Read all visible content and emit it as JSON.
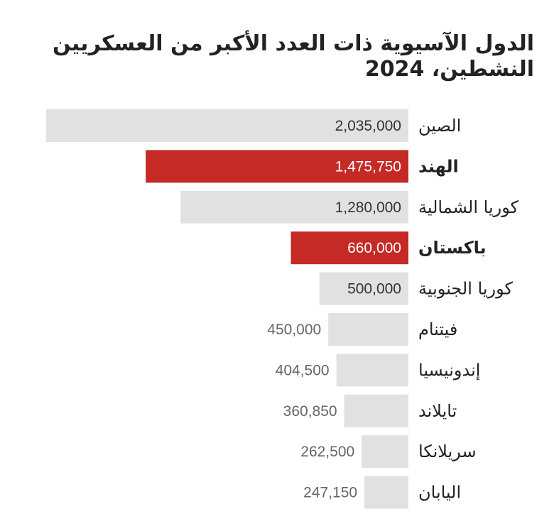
{
  "title": "الدول الآسيوية ذات العدد الأكبر من العسكريين النشطين، 2024",
  "colors": {
    "bar": "#e1e1e1",
    "highlight": "#c52a26",
    "text": "#222222"
  },
  "chart_data": {
    "type": "bar",
    "orientation": "horizontal",
    "title": "الدول الآسيوية ذات العدد الأكبر من العسكريين النشطين، 2024",
    "categories": [
      "الصين",
      "الهند",
      "كوريا الشمالية",
      "باكستان",
      "كوريا الجنوبية",
      "فيتنام",
      "إندونيسيا",
      "تايلاند",
      "سريلانكا",
      "اليابان"
    ],
    "values": [
      2035000,
      1475750,
      1280000,
      660000,
      500000,
      450000,
      404500,
      360850,
      262500,
      247150
    ],
    "value_labels": [
      "2,035,000",
      "1,475,750",
      "1,280,000",
      "660,000",
      "500,000",
      "450,000",
      "404,500",
      "360,850",
      "262,500",
      "247,150"
    ],
    "highlighted": [
      "الهند",
      "باكستان"
    ],
    "xlim": [
      0,
      2035000
    ],
    "grid": false,
    "legend": "none"
  }
}
